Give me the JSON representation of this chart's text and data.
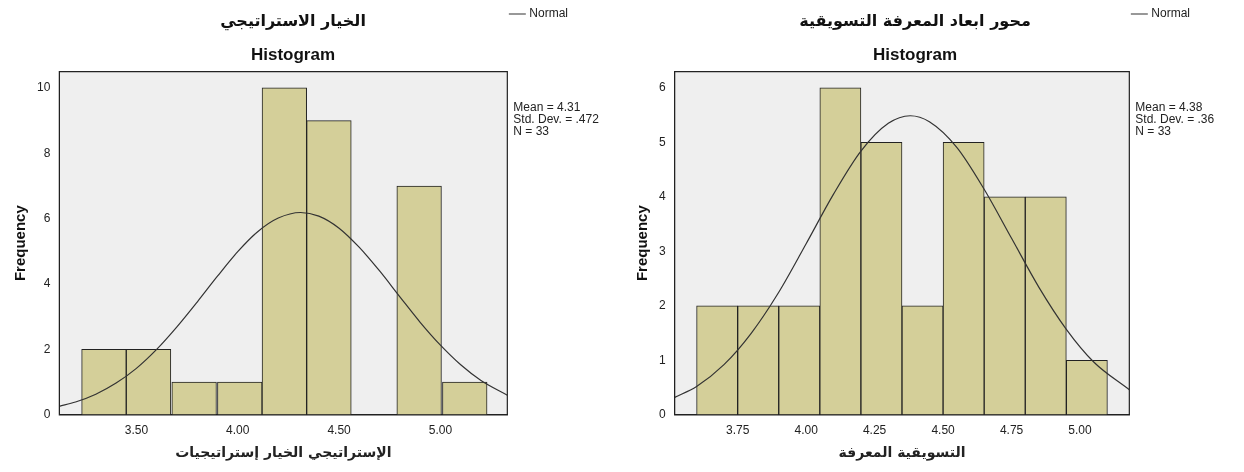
{
  "chart_data": [
    {
      "type": "histogram",
      "title": "الخيار الاستراتيجي",
      "subtitle": "Histogram",
      "xlabel": "الإستراتيجي الخيار إستراتيجيات",
      "ylabel": "Frequency",
      "bins": [
        3.23,
        3.45,
        3.67,
        3.9,
        4.12,
        4.34,
        4.56,
        4.78,
        5.01,
        5.23
      ],
      "values": [
        2,
        2,
        1,
        1,
        10,
        9,
        0,
        7,
        1
      ],
      "color": "#d4cf99",
      "series": [
        {
          "type": "line",
          "name": "Normal",
          "color": "#333333",
          "x": [
            3.12,
            3.2,
            3.3,
            3.4,
            3.5,
            3.6,
            3.7,
            3.8,
            3.9,
            4.0,
            4.1,
            4.2,
            4.31,
            4.4,
            4.5,
            4.6,
            4.7,
            4.8,
            4.9,
            5.0,
            5.1,
            5.2,
            5.33
          ],
          "values": [
            0.26,
            0.39,
            0.63,
            0.97,
            1.42,
            2.0,
            2.69,
            3.45,
            4.24,
            4.99,
            5.61,
            6.02,
            6.19,
            6.08,
            5.71,
            5.12,
            4.4,
            3.61,
            2.83,
            2.13,
            1.53,
            1.05,
            0.6
          ]
        }
      ],
      "xlim": [
        3.12,
        5.33
      ],
      "xticks": [
        {
          "value": 3.5,
          "label": "3.50"
        },
        {
          "value": 4,
          "label": "4.00"
        },
        {
          "value": 4.5,
          "label": "4.50"
        },
        {
          "value": 5,
          "label": "5.00"
        }
      ],
      "ylim": [
        0,
        10.5
      ],
      "yticks": [
        0,
        2,
        4,
        6,
        8,
        10
      ],
      "legend": "top right",
      "annotations": [
        "Mean = 4.31",
        "Std. Dev. = .472",
        "N = 33"
      ]
    },
    {
      "type": "histogram",
      "title": "محور ابعاد المعرفة التسويقية",
      "subtitle": "Histogram",
      "xlabel": "التسويقية المعرفة",
      "ylabel": "Frequency",
      "bins": [
        3.6,
        3.75,
        3.9,
        4.05,
        4.2,
        4.35,
        4.5,
        4.65,
        4.8,
        4.95,
        5.1
      ],
      "values": [
        2,
        2,
        2,
        6,
        5,
        2,
        5,
        4,
        4,
        1
      ],
      "color": "#d4cf99",
      "series": [
        {
          "type": "line",
          "name": "Normal",
          "color": "#333333",
          "x": [
            3.52,
            3.6,
            3.7,
            3.8,
            3.9,
            4.0,
            4.1,
            4.2,
            4.3,
            4.38,
            4.45,
            4.55,
            4.65,
            4.75,
            4.85,
            4.95,
            5.05,
            5.18
          ],
          "values": [
            0.32,
            0.52,
            0.92,
            1.5,
            2.25,
            3.14,
            4.05,
            4.84,
            5.35,
            5.49,
            5.38,
            4.91,
            4.14,
            3.24,
            2.34,
            1.57,
            0.97,
            0.46
          ]
        }
      ],
      "xlim": [
        3.52,
        5.18
      ],
      "xticks": [
        {
          "value": 3.75,
          "label": "3.75"
        },
        {
          "value": 4,
          "label": "4.00"
        },
        {
          "value": 4.25,
          "label": "4.25"
        },
        {
          "value": 4.5,
          "label": "4.50"
        },
        {
          "value": 4.75,
          "label": "4.75"
        },
        {
          "value": 5,
          "label": "5.00"
        }
      ],
      "ylim": [
        0,
        6.3
      ],
      "yticks": [
        0,
        1,
        2,
        3,
        4,
        5,
        6
      ],
      "legend": "top right",
      "annotations": [
        "Mean = 4.38",
        "Std. Dev. = .36",
        "N = 33"
      ]
    }
  ]
}
